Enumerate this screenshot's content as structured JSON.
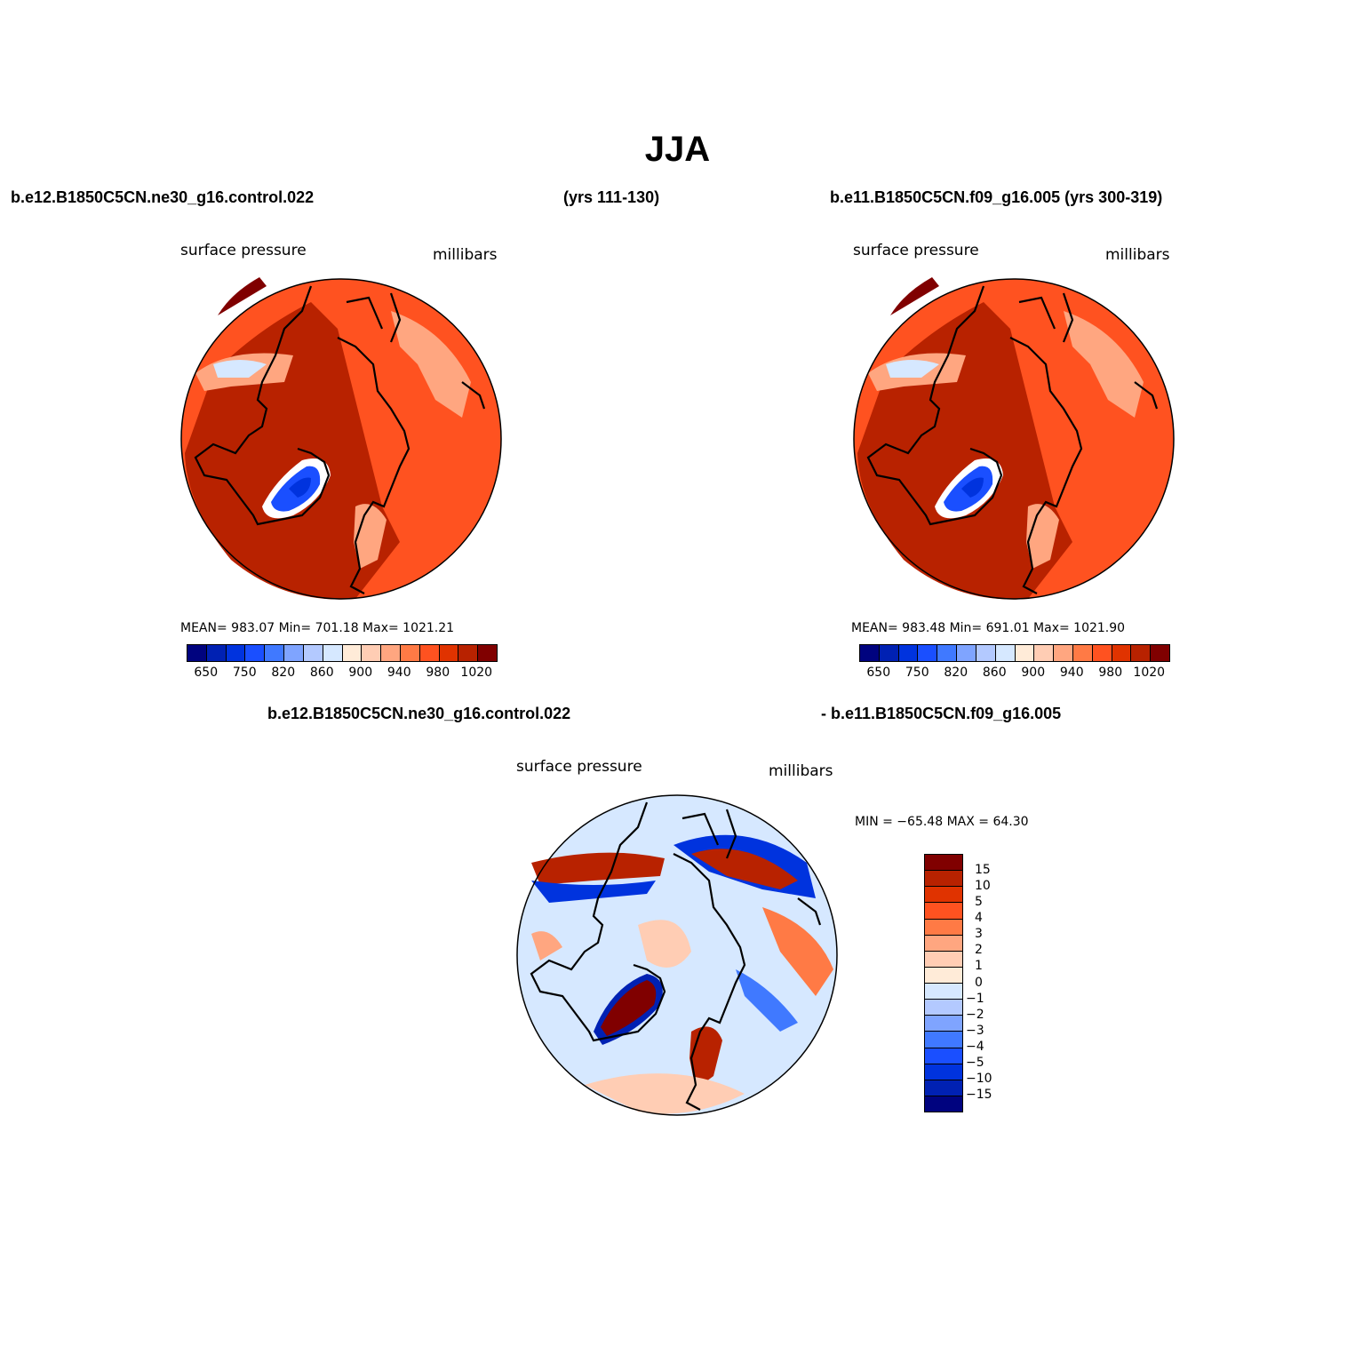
{
  "title": "JJA",
  "panels": [
    {
      "case": "b.e12.B1850C5CN.ne30_g16.control.022",
      "years": "(yrs 111-130)",
      "variable": "surface pressure",
      "units": "millibars",
      "stats": "MEAN= 983.07   Min= 701.18   Max= 1021.21"
    },
    {
      "case": "b.e11.B1850C5CN.f09_g16.005 (yrs 300-319)",
      "variable": "surface pressure",
      "units": "millibars",
      "stats": "MEAN= 983.48   Min= 691.01   Max= 1021.90"
    },
    {
      "case_a": "b.e12.B1850C5CN.ne30_g16.control.022",
      "case_b": "- b.e11.B1850C5CN.f09_g16.005",
      "variable": "surface pressure",
      "units": "millibars",
      "stats": "MIN = −65.48 MAX =   64.30"
    }
  ],
  "colorbar_abs": {
    "colors": [
      "#00037f",
      "#0021b3",
      "#0033de",
      "#1a4fff",
      "#4079ff",
      "#7fa4ff",
      "#b3c9ff",
      "#d6e8ff",
      "#ffebd8",
      "#ffcdb4",
      "#ffa680",
      "#ff7a45",
      "#ff5220",
      "#e03300",
      "#b82200",
      "#800000"
    ],
    "labels": [
      "650",
      "750",
      "820",
      "860",
      "900",
      "940",
      "980",
      "1020"
    ]
  },
  "colorbar_diff": {
    "colors": [
      "#800000",
      "#b82200",
      "#e03300",
      "#ff5220",
      "#ff7a45",
      "#ffa680",
      "#ffcdb4",
      "#ffebd8",
      "#d6e8ff",
      "#b3c9ff",
      "#7fa4ff",
      "#4079ff",
      "#1a4fff",
      "#0033de",
      "#0021b3",
      "#00037f"
    ],
    "labels": [
      "15",
      "10",
      "5",
      "4",
      "3",
      "2",
      "1",
      "0",
      "−1",
      "−2",
      "−3",
      "−4",
      "−5",
      "−10",
      "−15"
    ]
  }
}
